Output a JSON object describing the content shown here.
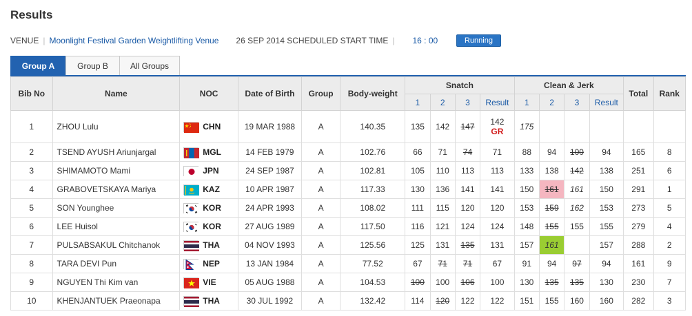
{
  "title": "Results",
  "venue": {
    "label": "VENUE",
    "name": "Moonlight Festival Garden Weightlifting Venue",
    "date_text": "26 SEP 2014 SCHEDULED START TIME",
    "time": "16 : 00",
    "status": "Running"
  },
  "tabs": [
    {
      "label": "Group A",
      "active": true
    },
    {
      "label": "Group B",
      "active": false
    },
    {
      "label": "All Groups",
      "active": false
    }
  ],
  "columns": {
    "bib": "Bib No",
    "name": "Name",
    "noc": "NOC",
    "dob": "Date of Birth",
    "group": "Group",
    "bodyweight": "Body-weight",
    "snatch": "Snatch",
    "clean_jerk": "Clean & Jerk",
    "total": "Total",
    "rank": "Rank",
    "a1": "1",
    "a2": "2",
    "a3": "3",
    "result": "Result"
  },
  "rows": [
    {
      "bib": "1",
      "name": "ZHOU Lulu",
      "noc": "CHN",
      "dob": "19 MAR 1988",
      "group": "A",
      "bw": "140.35",
      "s": [
        {
          "v": "135"
        },
        {
          "v": "142"
        },
        {
          "v": "147",
          "state": "fail"
        }
      ],
      "sres": "142",
      "record": "GR",
      "c": [
        {
          "v": "175",
          "state": "pending"
        },
        {
          "v": ""
        },
        {
          "v": ""
        }
      ],
      "cres": "",
      "total": "",
      "rank": ""
    },
    {
      "bib": "2",
      "name": "TSEND AYUSH Ariunjargal",
      "noc": "MGL",
      "dob": "14 FEB 1979",
      "group": "A",
      "bw": "102.76",
      "s": [
        {
          "v": "66"
        },
        {
          "v": "71"
        },
        {
          "v": "74",
          "state": "fail"
        }
      ],
      "sres": "71",
      "c": [
        {
          "v": "88"
        },
        {
          "v": "94"
        },
        {
          "v": "100",
          "state": "fail"
        }
      ],
      "cres": "94",
      "total": "165",
      "rank": "8"
    },
    {
      "bib": "3",
      "name": "SHIMAMOTO Mami",
      "noc": "JPN",
      "dob": "24 SEP 1987",
      "group": "A",
      "bw": "102.81",
      "s": [
        {
          "v": "105"
        },
        {
          "v": "110"
        },
        {
          "v": "113"
        }
      ],
      "sres": "113",
      "c": [
        {
          "v": "133"
        },
        {
          "v": "138"
        },
        {
          "v": "142",
          "state": "fail"
        }
      ],
      "cres": "138",
      "total": "251",
      "rank": "6"
    },
    {
      "bib": "4",
      "name": "GRABOVETSKAYA Mariya",
      "noc": "KAZ",
      "dob": "10 APR 1987",
      "group": "A",
      "bw": "117.33",
      "s": [
        {
          "v": "130"
        },
        {
          "v": "136"
        },
        {
          "v": "141"
        }
      ],
      "sres": "141",
      "c": [
        {
          "v": "150"
        },
        {
          "v": "161",
          "state": "fail",
          "hl": "red"
        },
        {
          "v": "161",
          "state": "pending"
        }
      ],
      "cres": "150",
      "total": "291",
      "rank": "1"
    },
    {
      "bib": "5",
      "name": "SON Younghee",
      "noc": "KOR",
      "dob": "24 APR 1993",
      "group": "A",
      "bw": "108.02",
      "s": [
        {
          "v": "111"
        },
        {
          "v": "115"
        },
        {
          "v": "120"
        }
      ],
      "sres": "120",
      "c": [
        {
          "v": "153"
        },
        {
          "v": "159",
          "state": "fail"
        },
        {
          "v": "162",
          "state": "pending"
        }
      ],
      "cres": "153",
      "total": "273",
      "rank": "5"
    },
    {
      "bib": "6",
      "name": "LEE Huisol",
      "noc": "KOR",
      "dob": "27 AUG 1989",
      "group": "A",
      "bw": "117.50",
      "s": [
        {
          "v": "116"
        },
        {
          "v": "121"
        },
        {
          "v": "124"
        }
      ],
      "sres": "124",
      "c": [
        {
          "v": "148"
        },
        {
          "v": "155",
          "state": "fail"
        },
        {
          "v": "155"
        }
      ],
      "cres": "155",
      "total": "279",
      "rank": "4"
    },
    {
      "bib": "7",
      "name": "PULSABSAKUL Chitchanok",
      "noc": "THA",
      "dob": "04 NOV 1993",
      "group": "A",
      "bw": "125.56",
      "s": [
        {
          "v": "125"
        },
        {
          "v": "131"
        },
        {
          "v": "135",
          "state": "fail"
        }
      ],
      "sres": "131",
      "c": [
        {
          "v": "157"
        },
        {
          "v": "161",
          "state": "pending",
          "hl": "green"
        },
        {
          "v": ""
        }
      ],
      "cres": "157",
      "total": "288",
      "rank": "2"
    },
    {
      "bib": "8",
      "name": "TARA DEVI Pun",
      "noc": "NEP",
      "dob": "13 JAN 1984",
      "group": "A",
      "bw": "77.52",
      "s": [
        {
          "v": "67"
        },
        {
          "v": "71",
          "state": "fail"
        },
        {
          "v": "71",
          "state": "fail"
        }
      ],
      "sres": "67",
      "c": [
        {
          "v": "91"
        },
        {
          "v": "94"
        },
        {
          "v": "97",
          "state": "fail"
        }
      ],
      "cres": "94",
      "total": "161",
      "rank": "9"
    },
    {
      "bib": "9",
      "name": "NGUYEN Thi Kim van",
      "noc": "VIE",
      "dob": "05 AUG 1988",
      "group": "A",
      "bw": "104.53",
      "s": [
        {
          "v": "100",
          "state": "fail"
        },
        {
          "v": "100"
        },
        {
          "v": "106",
          "state": "fail"
        }
      ],
      "sres": "100",
      "c": [
        {
          "v": "130"
        },
        {
          "v": "135",
          "state": "fail"
        },
        {
          "v": "135",
          "state": "fail"
        }
      ],
      "cres": "130",
      "total": "230",
      "rank": "7"
    },
    {
      "bib": "10",
      "name": "KHENJANTUEK Praeonapa",
      "noc": "THA",
      "dob": "30 JUL 1992",
      "group": "A",
      "bw": "132.42",
      "s": [
        {
          "v": "114"
        },
        {
          "v": "120",
          "state": "fail"
        },
        {
          "v": "122"
        }
      ],
      "sres": "122",
      "c": [
        {
          "v": "151"
        },
        {
          "v": "155"
        },
        {
          "v": "160"
        }
      ],
      "cres": "160",
      "total": "282",
      "rank": "3"
    }
  ],
  "colors": {
    "accent": "#2262b0",
    "link": "#1a5aa6",
    "record": "#d21b1b",
    "fail_highlight": "#f5b6c0",
    "good_highlight": "#9acd32"
  }
}
